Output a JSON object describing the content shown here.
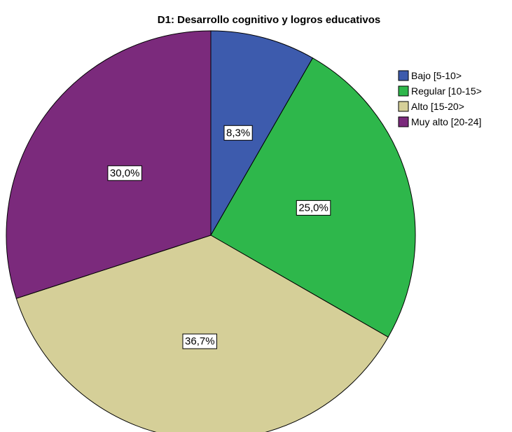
{
  "chart_data": {
    "type": "pie",
    "title": "D1: Desarrollo cognitivo y logros educativos",
    "start_angle_deg": 0,
    "direction": "clockwise",
    "legend_position": "right",
    "slices": [
      {
        "name": "Bajo [5-10>",
        "value": 8.3,
        "label": "8,3%",
        "color": "#3D5BAD"
      },
      {
        "name": "Regular [10-15>",
        "value": 25.0,
        "label": "25,0%",
        "color": "#2EB74B"
      },
      {
        "name": "Alto [15-20>",
        "value": 36.7,
        "label": "36,7%",
        "color": "#D5CF98"
      },
      {
        "name": "Muy alto [20-24]",
        "value": 30.0,
        "label": "30,0%",
        "color": "#7B2A7C"
      }
    ]
  }
}
